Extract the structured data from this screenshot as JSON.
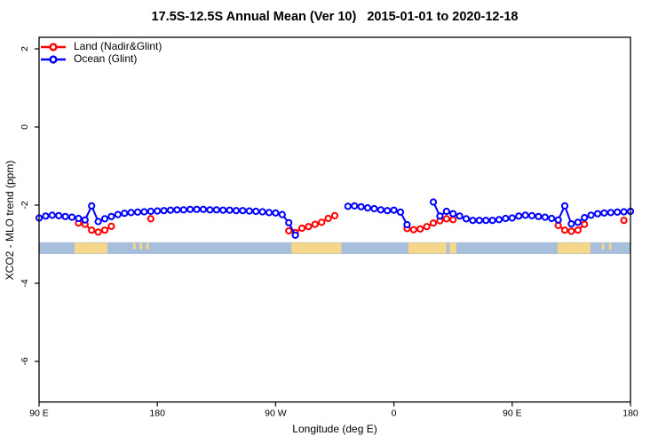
{
  "chart_data": {
    "type": "line",
    "title": "17.5S-12.5S Annual Mean (Ver 10)   2015-01-01 to 2020-12-18",
    "xlabel": "Longitude (deg E)",
    "ylabel": "XCO2 - MLO trend (ppm)",
    "x_axis": {
      "ticks_axis_deg": [
        90,
        180,
        270,
        360,
        450,
        540
      ],
      "tick_labels": [
        "90 E",
        "180",
        "90 W",
        "0",
        "90 E",
        "180"
      ],
      "range_axis_deg": [
        90,
        540
      ]
    },
    "y_axis": {
      "ticks": [
        2,
        0,
        -2,
        -4,
        -6
      ],
      "tick_labels": [
        "2",
        "0",
        "-2",
        "-4",
        "-6"
      ],
      "range": [
        -7.0,
        2.3
      ],
      "grid": false
    },
    "legend": {
      "position": "top-left",
      "items": [
        {
          "label": "Land (Nadir&Glint)",
          "color": "#ff0000"
        },
        {
          "label": "Ocean (Glint)",
          "color": "#0000ff"
        }
      ]
    },
    "map_strip": {
      "ocean_color": "#a8bedd",
      "land_color": "#f6d78a",
      "value_top": -2.95,
      "value_bottom": -3.25,
      "land_regions_axis_deg": [
        [
          117,
          142
        ],
        [
          282,
          320
        ],
        [
          371,
          400
        ],
        [
          402.5,
          407.5
        ],
        [
          484.5,
          509.5
        ]
      ],
      "minor_island_regions_axis_deg": [
        [
          161.5,
          163.5
        ],
        [
          166.5,
          168.5
        ],
        [
          171.5,
          173.5
        ],
        [
          518,
          520
        ],
        [
          523.5,
          525.5
        ]
      ]
    },
    "series": [
      {
        "name": "Land (Nadir&Glint)",
        "color": "#ff0000",
        "segments": [
          [
            [
              120,
              -2.46
            ],
            [
              125,
              -2.49
            ],
            [
              130,
              -2.64
            ],
            [
              135,
              -2.69
            ],
            [
              140,
              -2.64
            ],
            [
              145,
              -2.54
            ]
          ],
          [
            [
              175,
              -2.35
            ]
          ],
          [
            [
              280,
              -2.66
            ],
            [
              285,
              -2.7
            ],
            [
              290,
              -2.59
            ],
            [
              295,
              -2.55
            ],
            [
              300,
              -2.49
            ],
            [
              305,
              -2.44
            ],
            [
              310,
              -2.34
            ],
            [
              315,
              -2.27
            ]
          ],
          [
            [
              370,
              -2.6
            ],
            [
              375,
              -2.63
            ],
            [
              380,
              -2.61
            ],
            [
              385,
              -2.55
            ],
            [
              390,
              -2.46
            ],
            [
              395,
              -2.4
            ],
            [
              400,
              -2.35
            ],
            [
              405,
              -2.37
            ]
          ],
          [
            [
              485,
              -2.52
            ],
            [
              490,
              -2.64
            ],
            [
              495,
              -2.67
            ],
            [
              500,
              -2.64
            ],
            [
              505,
              -2.49
            ]
          ],
          [
            [
              535,
              -2.39
            ]
          ]
        ]
      },
      {
        "name": "Ocean (Glint)",
        "color": "#0000ff",
        "x": [
          90,
          95,
          100,
          105,
          110,
          115,
          120,
          125,
          130,
          135,
          140,
          145,
          150,
          155,
          160,
          165,
          170,
          175,
          180,
          185,
          190,
          195,
          200,
          205,
          210,
          215,
          220,
          225,
          230,
          235,
          240,
          245,
          250,
          255,
          260,
          265,
          270,
          275,
          280,
          285,
          290,
          295,
          300,
          305,
          310,
          315,
          320,
          325,
          330,
          335,
          340,
          345,
          350,
          355,
          360,
          365,
          370,
          375,
          380,
          385,
          390,
          395,
          400,
          405,
          410,
          415,
          420,
          425,
          430,
          435,
          440,
          445,
          450,
          455,
          460,
          465,
          470,
          475,
          480,
          485,
          490,
          495,
          500,
          505,
          510,
          515,
          520,
          525,
          530,
          535,
          540
        ],
        "values": [
          -2.33,
          -2.28,
          -2.26,
          -2.27,
          -2.29,
          -2.31,
          -2.34,
          -2.38,
          -2.02,
          -2.42,
          -2.35,
          -2.29,
          -2.24,
          -2.21,
          -2.19,
          -2.18,
          -2.17,
          -2.16,
          -2.15,
          -2.14,
          -2.13,
          -2.12,
          -2.12,
          -2.11,
          -2.11,
          -2.11,
          -2.12,
          -2.12,
          -2.13,
          -2.13,
          -2.14,
          -2.14,
          -2.15,
          -2.16,
          -2.17,
          -2.19,
          -2.2,
          -2.24,
          -2.45,
          -2.77,
          null,
          null,
          null,
          null,
          null,
          null,
          null,
          -2.03,
          -2.02,
          -2.04,
          -2.07,
          -2.09,
          -2.12,
          -2.14,
          -2.13,
          -2.18,
          -2.5,
          null,
          null,
          null,
          -1.92,
          -2.28,
          -2.16,
          -2.22,
          -2.28,
          -2.35,
          -2.39,
          -2.39,
          -2.39,
          -2.39,
          -2.37,
          -2.34,
          -2.33,
          -2.28,
          -2.26,
          -2.27,
          -2.29,
          -2.31,
          -2.34,
          -2.38,
          -2.02,
          -2.48,
          -2.44,
          -2.32,
          -2.26,
          -2.22,
          -2.2,
          -2.19,
          -2.18,
          -2.17,
          -2.16
        ]
      }
    ]
  }
}
